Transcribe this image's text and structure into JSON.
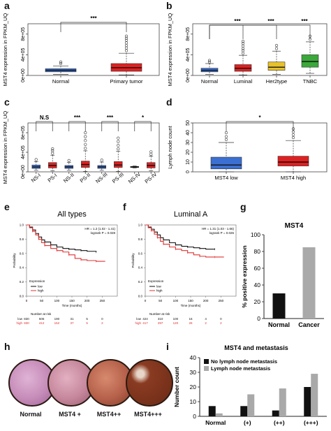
{
  "panels": {
    "a": "a",
    "b": "b",
    "c": "c",
    "d": "d",
    "e": "e",
    "f": "f",
    "g": "g",
    "h": "h",
    "i": "i"
  },
  "chart_data": [
    {
      "id": "a",
      "type": "box",
      "ylabel": "MST4 expression in FPKM_UQ",
      "yticks": [
        "0e+00",
        "4e+05",
        "8e+05"
      ],
      "ylim": [
        0,
        1000000
      ],
      "categories": [
        "Normal",
        "Primary tumor"
      ],
      "colors": [
        "#3b6fd1",
        "#e02020"
      ],
      "boxes": [
        {
          "min": 20000,
          "q1": 70000,
          "median": 100000,
          "q3": 130000,
          "max": 180000,
          "outliers": [
            230000,
            260000
          ]
        },
        {
          "min": 10000,
          "q1": 80000,
          "median": 150000,
          "q3": 230000,
          "max": 430000,
          "outliers": [
            480000,
            530000,
            580000,
            630000,
            680000,
            720000,
            760000
          ]
        }
      ],
      "significance": [
        {
          "from": 0,
          "to": 1,
          "label": "***"
        }
      ]
    },
    {
      "id": "b",
      "type": "box",
      "ylabel": "MST4 expression in FPKM_UQ",
      "yticks": [
        "0e+00",
        "4e+05",
        "8e+05"
      ],
      "ylim": [
        0,
        1000000
      ],
      "categories": [
        "Normal",
        "Luminal",
        "Her2type",
        "TNBC"
      ],
      "colors": [
        "#3b6fd1",
        "#e02020",
        "#e8c22a",
        "#3aa83a"
      ],
      "boxes": [
        {
          "min": 20000,
          "q1": 70000,
          "median": 100000,
          "q3": 140000,
          "max": 230000,
          "outliers": [
            260000,
            290000
          ]
        },
        {
          "min": 10000,
          "q1": 80000,
          "median": 140000,
          "q3": 210000,
          "max": 390000,
          "outliers": [
            430000,
            480000,
            520000,
            570000,
            620000,
            660000
          ]
        },
        {
          "min": 20000,
          "q1": 100000,
          "median": 160000,
          "q3": 260000,
          "max": 470000,
          "outliers": [
            520000,
            580000
          ]
        },
        {
          "min": 40000,
          "q1": 160000,
          "median": 270000,
          "q3": 400000,
          "max": 650000,
          "outliers": [
            700000,
            760000
          ]
        }
      ],
      "significance": [
        {
          "from": 0,
          "to": 1,
          "label": "***"
        },
        {
          "from": 0,
          "to": 2,
          "label": "***"
        },
        {
          "from": 0,
          "to": 3,
          "label": "***"
        }
      ]
    },
    {
      "id": "c",
      "type": "box",
      "ylabel": "MST4 expression in FPKM_UQ",
      "yticks": [
        "0e+00",
        "4e+05",
        "8e+05"
      ],
      "ylim": [
        0,
        1000000
      ],
      "categories": [
        "NS-I",
        "PS-I",
        "NS-II",
        "PS-II",
        "NS-III",
        "PS-III",
        "NS-IV",
        "PS-IV"
      ],
      "colors": [
        "#3b6fd1",
        "#e02020",
        "#3b6fd1",
        "#e02020",
        "#3b6fd1",
        "#e02020",
        "#3b6fd1",
        "#e02020"
      ],
      "boxes": [
        {
          "min": 30000,
          "q1": 70000,
          "median": 100000,
          "q3": 140000,
          "max": 210000,
          "outliers": [
            250000
          ]
        },
        {
          "min": 20000,
          "q1": 80000,
          "median": 130000,
          "q3": 190000,
          "max": 340000,
          "outliers": [
            380000,
            430000,
            470000
          ]
        },
        {
          "min": 30000,
          "q1": 70000,
          "median": 100000,
          "q3": 130000,
          "max": 190000,
          "outliers": [
            230000
          ]
        },
        {
          "min": 10000,
          "q1": 90000,
          "median": 150000,
          "q3": 220000,
          "max": 430000,
          "outliers": [
            480000,
            560000,
            640000,
            720000,
            800000
          ]
        },
        {
          "min": 30000,
          "q1": 70000,
          "median": 100000,
          "q3": 130000,
          "max": 200000,
          "outliers": [
            240000
          ]
        },
        {
          "min": 10000,
          "q1": 90000,
          "median": 140000,
          "q3": 210000,
          "max": 420000,
          "outliers": [
            470000,
            540000,
            620000,
            690000
          ]
        },
        {
          "min": 80000,
          "q1": 90000,
          "median": 100000,
          "q3": 110000,
          "max": 120000,
          "outliers": []
        },
        {
          "min": 20000,
          "q1": 80000,
          "median": 130000,
          "q3": 190000,
          "max": 320000,
          "outliers": [
            360000,
            410000
          ]
        }
      ],
      "significance": [
        {
          "from": 0,
          "to": 1,
          "label": "N.S"
        },
        {
          "from": 2,
          "to": 3,
          "label": "***"
        },
        {
          "from": 4,
          "to": 5,
          "label": "***"
        },
        {
          "from": 6,
          "to": 7,
          "label": "*"
        }
      ]
    },
    {
      "id": "d",
      "type": "box",
      "ylabel": "Lymph node count",
      "yticks": [
        "0",
        "10",
        "20",
        "30",
        "40",
        "50"
      ],
      "ylim": [
        0,
        50
      ],
      "categories": [
        "MST4 low",
        "MST4 high"
      ],
      "colors": [
        "#3b6fd1",
        "#e02020"
      ],
      "boxes": [
        {
          "min": 0,
          "q1": 3,
          "median": 7,
          "q3": 15,
          "max": 30,
          "outliers": [
            33,
            36,
            40
          ]
        },
        {
          "min": 0,
          "q1": 6,
          "median": 10,
          "q3": 16,
          "max": 32,
          "outliers": [
            35,
            38,
            41,
            44
          ]
        }
      ],
      "significance": [
        {
          "from": 0,
          "to": 1,
          "label": "*"
        }
      ]
    },
    {
      "id": "e",
      "type": "line",
      "title": "All types",
      "xlabel": "Time (months)",
      "ylabel": "Probability",
      "xticks": [
        "0",
        "50",
        "100",
        "150",
        "200",
        "250"
      ],
      "yticks": [
        "0.0",
        "0.2",
        "0.4",
        "0.6",
        "0.8",
        "1.0"
      ],
      "xlim": [
        0,
        300
      ],
      "ylim": [
        0,
        1
      ],
      "stats": [
        "HR = 1.2 (1.02 - 1.41)",
        "logrank P = 0.028"
      ],
      "legend_title": "Expression",
      "series": [
        {
          "name": "low",
          "color": "#111111",
          "x": [
            0,
            10,
            20,
            30,
            40,
            50,
            60,
            80,
            100,
            120,
            140,
            160,
            180,
            200,
            230
          ],
          "y": [
            1,
            0.97,
            0.93,
            0.88,
            0.83,
            0.79,
            0.76,
            0.72,
            0.69,
            0.67,
            0.66,
            0.65,
            0.64,
            0.63,
            0.62
          ]
        },
        {
          "name": "high",
          "color": "#e03030",
          "x": [
            0,
            10,
            20,
            30,
            40,
            50,
            60,
            80,
            100,
            120,
            140,
            160,
            180,
            200,
            230,
            260
          ],
          "y": [
            1,
            0.96,
            0.91,
            0.86,
            0.8,
            0.75,
            0.71,
            0.67,
            0.64,
            0.62,
            0.58,
            0.53,
            0.51,
            0.5,
            0.49,
            0.49
          ]
        }
      ],
      "risk_header": "Number at risk",
      "risk_rows": [
        {
          "label": "low",
          "color": "#111111",
          "values": [
            "830",
            "506",
            "190",
            "31",
            "5",
            "0"
          ]
        },
        {
          "label": "high",
          "color": "#e03030",
          "values": [
            "830",
            "412",
            "152",
            "37",
            "5",
            "2"
          ]
        }
      ]
    },
    {
      "id": "f",
      "type": "line",
      "title": "Luminal A",
      "xlabel": "Time (months)",
      "ylabel": "Probability",
      "xticks": [
        "0",
        "50",
        "100",
        "150",
        "200",
        "250"
      ],
      "yticks": [
        "0.0",
        "0.2",
        "0.4",
        "0.6",
        "0.8",
        "1.0"
      ],
      "xlim": [
        0,
        300
      ],
      "ylim": [
        0,
        1
      ],
      "stats": [
        "HR = 1.31 (1.03 - 1.66)",
        "logrank P = 0.026"
      ],
      "legend_title": "Expression",
      "series": [
        {
          "name": "low",
          "color": "#111111",
          "x": [
            0,
            10,
            20,
            30,
            40,
            50,
            60,
            80,
            100,
            120,
            140,
            160,
            180,
            200,
            230
          ],
          "y": [
            1,
            0.97,
            0.94,
            0.9,
            0.86,
            0.82,
            0.79,
            0.75,
            0.72,
            0.7,
            0.69,
            0.68,
            0.67,
            0.66,
            0.66
          ]
        },
        {
          "name": "high",
          "color": "#e03030",
          "x": [
            0,
            10,
            20,
            30,
            40,
            50,
            60,
            80,
            100,
            120,
            140,
            160,
            180,
            200,
            230,
            260
          ],
          "y": [
            1,
            0.96,
            0.92,
            0.87,
            0.82,
            0.77,
            0.73,
            0.69,
            0.66,
            0.64,
            0.61,
            0.58,
            0.56,
            0.55,
            0.55,
            0.55
          ]
        }
      ],
      "risk_header": "Number at risk",
      "risk_rows": [
        {
          "label": "low",
          "color": "#111111",
          "values": [
            "424",
            "310",
            "100",
            "16",
            "4",
            "0"
          ]
        },
        {
          "label": "high",
          "color": "#e03030",
          "values": [
            "417",
            "297",
            "120",
            "26",
            "2",
            "2"
          ]
        }
      ]
    },
    {
      "id": "g",
      "type": "bar",
      "title": "MST4",
      "ylabel": "% positive expression",
      "yticks": [
        "0",
        "20",
        "40",
        "60",
        "80",
        "100"
      ],
      "ylim": [
        0,
        100
      ],
      "categories": [
        "Normal",
        "Cancer"
      ],
      "values": [
        30,
        85
      ],
      "colors": [
        "#111111",
        "#a9a9a9"
      ]
    },
    {
      "id": "i",
      "type": "bar",
      "title": "MST4 and metastasis",
      "ylabel": "Number count",
      "yticks": [
        "0",
        "10",
        "20",
        "30",
        "40"
      ],
      "ylim": [
        0,
        40
      ],
      "categories": [
        "Normal",
        "(+)",
        "(++)",
        "(+++)"
      ],
      "series": [
        {
          "name": "No lymph node metastasis",
          "color": "#111111",
          "values": [
            7,
            7,
            4,
            20
          ]
        },
        {
          "name": "Lymph node metastasis",
          "color": "#a9a9a9",
          "values": [
            2,
            15,
            19,
            29
          ]
        }
      ]
    }
  ],
  "histology": {
    "labels": [
      "Normal",
      "MST4 +",
      "MST4++",
      "MST4+++"
    ],
    "colors": [
      "#c58bb8",
      "#c5869b",
      "#b5604a",
      "#8a3b22"
    ]
  }
}
